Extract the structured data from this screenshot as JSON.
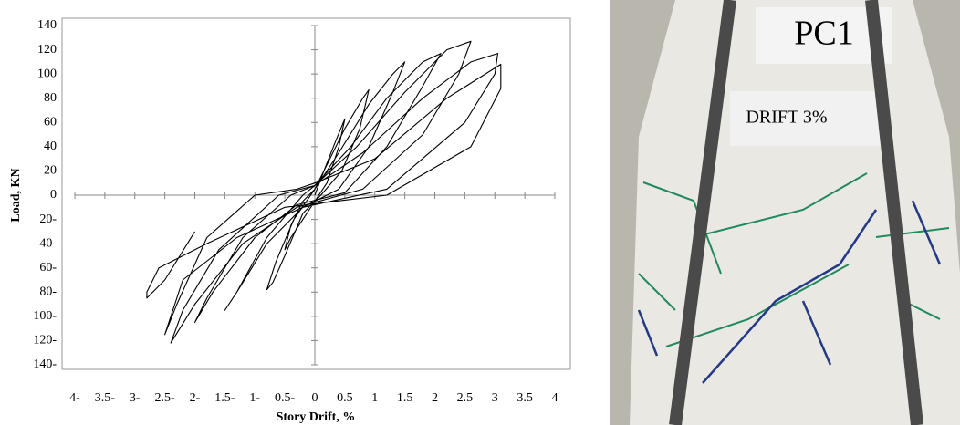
{
  "chart_data": {
    "type": "line",
    "x_label": "Story Drift, %",
    "y_label": "Load, KN",
    "color": "#000000",
    "xlim": [
      -4,
      4
    ],
    "ylim": [
      -140,
      140
    ],
    "xticks": [
      {
        "value": -4,
        "label": "4-"
      },
      {
        "value": -3.5,
        "label": "3.5-"
      },
      {
        "value": -3,
        "label": "3-"
      },
      {
        "value": -2.5,
        "label": "2.5-"
      },
      {
        "value": -2,
        "label": "2-"
      },
      {
        "value": -1.5,
        "label": "1.5-"
      },
      {
        "value": -1,
        "label": "1-"
      },
      {
        "value": -0.5,
        "label": "0.5-"
      },
      0,
      0.5,
      1,
      1.5,
      2,
      2.5,
      3,
      3.5,
      4
    ],
    "yticks": [
      {
        "value": -140,
        "label": "140-"
      },
      {
        "value": -120,
        "label": "120-"
      },
      {
        "value": -100,
        "label": "100-"
      },
      {
        "value": -80,
        "label": "80-"
      },
      {
        "value": -60,
        "label": "60-"
      },
      {
        "value": -40,
        "label": "40-"
      },
      {
        "value": -20,
        "label": "20-"
      },
      0,
      20,
      40,
      60,
      80,
      100,
      120,
      140
    ],
    "x": [
      0,
      0.15,
      0.35,
      0.5,
      0.4,
      0.2,
      0,
      -0.2,
      -0.4,
      -0.5,
      -0.4,
      -0.2,
      0,
      0.2,
      0.5,
      0.8,
      0.9,
      0.75,
      0.45,
      0.1,
      -0.2,
      -0.5,
      -0.7,
      -0.8,
      -0.65,
      -0.35,
      0,
      0.4,
      0.9,
      1.3,
      1.5,
      1.3,
      0.9,
      0.4,
      -0.2,
      -0.8,
      -1.3,
      -1.5,
      -1.3,
      -0.8,
      -0.2,
      0,
      0.6,
      1.2,
      1.8,
      2.1,
      1.8,
      1.2,
      0.5,
      -0.3,
      -1.0,
      -1.7,
      -2.0,
      -1.8,
      -1.2,
      -0.4,
      0,
      0.7,
      1.5,
      2.2,
      2.6,
      2.4,
      1.8,
      0.8,
      -0.3,
      -1.2,
      -2.0,
      -2.4,
      -2.2,
      -1.6,
      -0.6,
      0,
      0.8,
      1.8,
      2.6,
      3.05,
      3.0,
      2.5,
      1.2,
      -0.2,
      -1.3,
      -2.2,
      -2.5,
      -2.3,
      -1.8,
      -1.0,
      -0.3,
      0,
      1.0,
      2.2,
      3.1,
      3.1,
      2.6,
      1.2,
      -0.5,
      -1.8,
      -2.6,
      -2.8,
      -2.8,
      -2.5,
      -2.0
    ],
    "values": [
      0,
      20,
      45,
      63,
      40,
      10,
      -5,
      -20,
      -35,
      -45,
      -25,
      -5,
      5,
      25,
      55,
      80,
      87,
      55,
      20,
      0,
      -15,
      -50,
      -72,
      -78,
      -55,
      -20,
      5,
      35,
      75,
      100,
      110,
      85,
      40,
      5,
      -10,
      -40,
      -80,
      -95,
      -80,
      -35,
      0,
      8,
      40,
      80,
      110,
      117,
      90,
      40,
      2,
      -8,
      -35,
      -80,
      -105,
      -85,
      -35,
      0,
      8,
      40,
      85,
      120,
      127,
      100,
      50,
      5,
      -10,
      -40,
      -90,
      -122,
      -95,
      -45,
      0,
      8,
      35,
      80,
      110,
      117,
      100,
      60,
      5,
      -10,
      -35,
      -70,
      -115,
      -90,
      -35,
      0,
      5,
      10,
      30,
      80,
      108,
      88,
      40,
      0,
      -10,
      -40,
      -60,
      -80,
      -85,
      -70,
      -30
    ]
  },
  "photo": {
    "sign": "PC1",
    "placard": "DRIFT 3%"
  }
}
